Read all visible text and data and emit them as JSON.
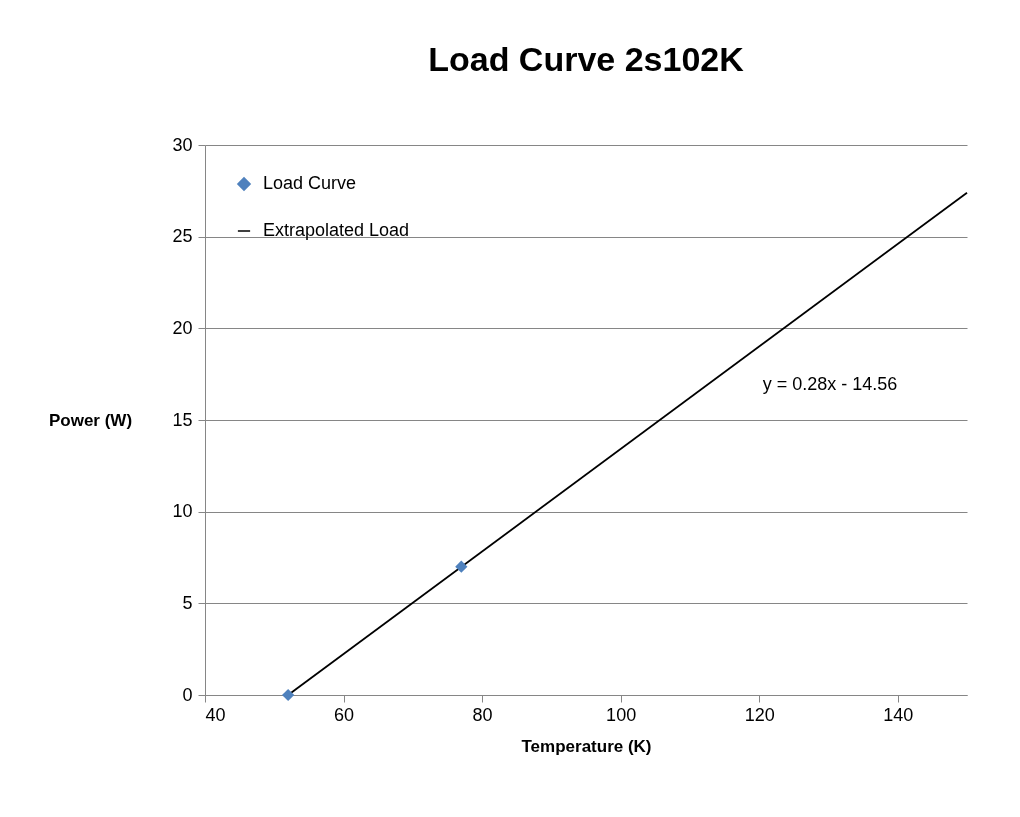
{
  "chart_data": {
    "type": "scatter",
    "title": "Load Curve 2s102K",
    "xlabel": "Temperature (K)",
    "ylabel": "Power (W)",
    "series": [
      {
        "name": "Load Curve",
        "color": "#4f81bd",
        "x": [
          52,
          77
        ],
        "values": [
          0,
          7
        ],
        "marker": "diamond"
      },
      {
        "name": "Extrapolated Load",
        "type": "line",
        "color": "#000000",
        "x": [
          52,
          150
        ],
        "values": [
          0,
          27.4
        ],
        "line_style": "solid"
      }
    ],
    "xlim": [
      40,
      150
    ],
    "xticks": [
      40,
      60,
      80,
      100,
      120,
      140
    ],
    "ylim": [
      0,
      30
    ],
    "yticks": [
      0,
      5,
      10,
      15,
      20,
      25,
      30
    ],
    "grid": "y",
    "legend": "top left",
    "annotations": [
      "y = 0.28x - 14.56"
    ]
  }
}
